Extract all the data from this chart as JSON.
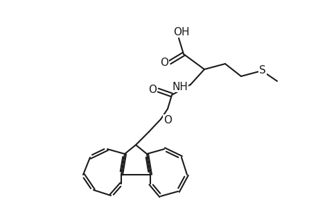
{
  "background_color": "#ffffff",
  "line_color": "#1a1a1a",
  "line_width": 1.5,
  "font_size": 11,
  "figsize": [
    4.6,
    3.0
  ],
  "dpi": 100,
  "xlim": [
    0,
    460
  ],
  "ylim": [
    0,
    300
  ]
}
